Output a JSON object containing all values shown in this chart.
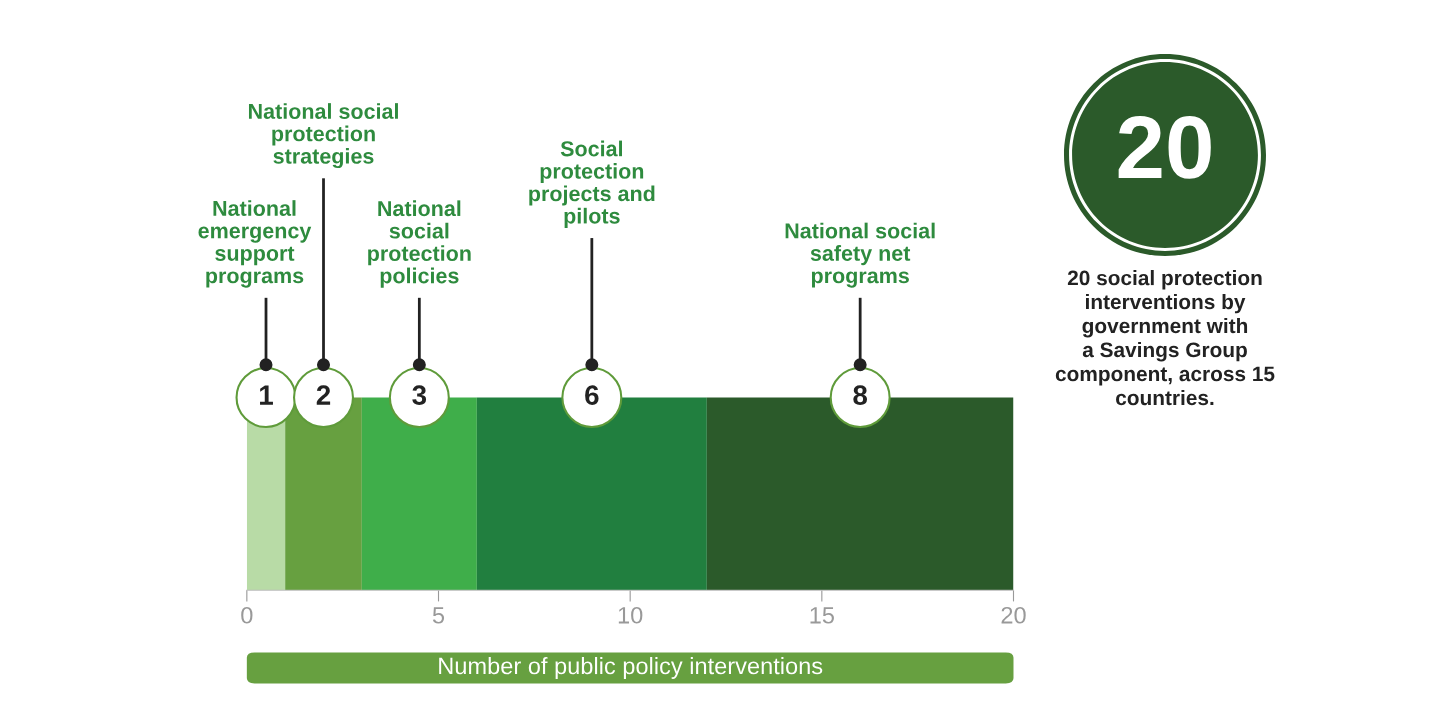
{
  "chart_data": {
    "type": "bar",
    "orientation": "horizontal",
    "stacked": true,
    "categories": [
      null
    ],
    "series": [
      {
        "color": "#b8dba6",
        "values": [
          1
        ]
      },
      {
        "color": "#67a040",
        "values": [
          2
        ]
      },
      {
        "color": "#3fae4a",
        "values": [
          3
        ]
      },
      {
        "color": "#217f3f",
        "values": [
          6
        ]
      },
      {
        "color": "#2b5a2a",
        "values": [
          8
        ]
      }
    ],
    "xlim": [
      0,
      20
    ],
    "xticks": [
      0,
      5,
      10,
      15,
      20
    ],
    "xlabel": "Number of public policy interventions",
    "tick_labels": "x",
    "data_labels": true,
    "grid": false,
    "annotations": [
      "National\nemergency\nsupport\nprograms",
      "National social\nprotection\nstrategies",
      "National\nsocial\nprotection\npolicies",
      "Social\nprotection\nprojects and\npilots",
      "National social\nsafety net\nprograms",
      "20",
      "20 social protection\ninterventions by\ngovernment with\na Savings Group\ncomponent, across 15\ncountries."
    ]
  }
}
